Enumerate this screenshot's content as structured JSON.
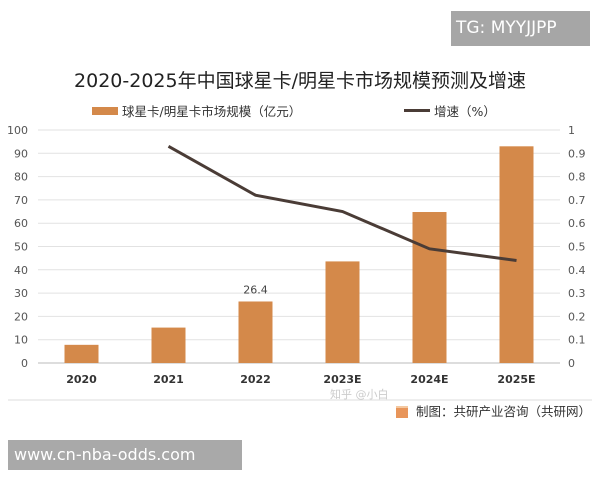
{
  "chart_data": {
    "type": "bar+line",
    "title": "2020-2025年中国球星卡/明星卡市场规模预测及增速",
    "categories": [
      "2020",
      "2021",
      "2022",
      "2023E",
      "2024E",
      "2025E"
    ],
    "series": [
      {
        "name": "球星卡/明星卡市场规模（亿元）",
        "type": "bar",
        "axis": "left",
        "color": "#d4894a",
        "values": [
          7.8,
          15.2,
          26.4,
          43.6,
          64.8,
          93.0
        ]
      },
      {
        "name": "增速（%）",
        "type": "line",
        "axis": "right",
        "color": "#4a3c36",
        "values": [
          null,
          0.93,
          0.72,
          0.65,
          0.49,
          0.44
        ]
      }
    ],
    "data_labels": [
      {
        "category": "2022",
        "text": "26.4"
      }
    ],
    "y_left": {
      "min": 0,
      "max": 100,
      "ticks": [
        "0",
        "10",
        "20",
        "30",
        "40",
        "50",
        "60",
        "70",
        "80",
        "90",
        "100"
      ]
    },
    "y_right": {
      "min": 0,
      "max": 1,
      "ticks": [
        "0",
        "0.1",
        "0.2",
        "0.3",
        "0.4",
        "0.5",
        "0.6",
        "0.7",
        "0.8",
        "0.9",
        "1"
      ]
    },
    "grid": true,
    "legend": "top"
  },
  "source": "制图：共研产业咨询（共研网）",
  "watermarks": {
    "tg": "TG: MYYJJPP",
    "site": "www.cn-nba-odds.com",
    "zhihu": "知乎 @小白"
  }
}
